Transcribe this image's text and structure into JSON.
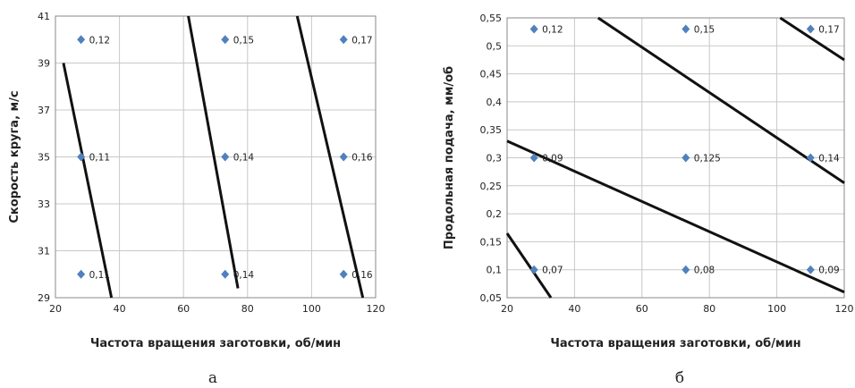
{
  "chart_data": [
    {
      "type": "scatter",
      "caption": "а",
      "xlabel": "Частота вращения заготовки, об/мин",
      "ylabel": "Скорость круга, м/с",
      "xlim": [
        20,
        120
      ],
      "ylim": [
        29,
        41
      ],
      "xticks": [
        20,
        40,
        60,
        80,
        100,
        120
      ],
      "yticks": [
        29,
        31,
        33,
        35,
        37,
        39,
        41
      ],
      "ytick_labels": [
        "29",
        "31",
        "33",
        "35",
        "37",
        "39",
        "41"
      ],
      "grid": true,
      "marker_color": "#4f81bd",
      "line_color": "#111111",
      "points": [
        {
          "x": 28,
          "y": 40,
          "label": "0,12"
        },
        {
          "x": 73,
          "y": 40,
          "label": "0,15"
        },
        {
          "x": 110,
          "y": 40,
          "label": "0,17"
        },
        {
          "x": 28,
          "y": 35,
          "label": "0,11"
        },
        {
          "x": 73,
          "y": 35,
          "label": "0,14"
        },
        {
          "x": 110,
          "y": 35,
          "label": "0,16"
        },
        {
          "x": 28,
          "y": 30,
          "label": "0,11"
        },
        {
          "x": 73,
          "y": 30,
          "label": "0,14"
        },
        {
          "x": 110,
          "y": 30,
          "label": "0,16"
        }
      ],
      "lines": [
        {
          "x1": 22.5,
          "y1": 39,
          "x2": 37.5,
          "y2": 29
        },
        {
          "x1": 61.5,
          "y1": 41,
          "x2": 77,
          "y2": 29.4
        },
        {
          "x1": 95.5,
          "y1": 41,
          "x2": 116,
          "y2": 29
        }
      ]
    },
    {
      "type": "scatter",
      "caption": "б",
      "xlabel": "Частота вращения заготовки, об/мин",
      "ylabel": "Продольная подача, мм/об",
      "xlim": [
        20,
        120
      ],
      "ylim": [
        0.05,
        0.55
      ],
      "xticks": [
        20,
        40,
        60,
        80,
        100,
        120
      ],
      "yticks": [
        0.05,
        0.1,
        0.15,
        0.2,
        0.25,
        0.3,
        0.35,
        0.4,
        0.45,
        0.5,
        0.55
      ],
      "ytick_labels": [
        "0,05",
        "0,1",
        "0,15",
        "0,2",
        "0,25",
        "0,3",
        "0,35",
        "0,4",
        "0,45",
        "0,5",
        "0,55"
      ],
      "grid": true,
      "marker_color": "#4f81bd",
      "line_color": "#111111",
      "points": [
        {
          "x": 28,
          "y": 0.53,
          "label": "0,12"
        },
        {
          "x": 73,
          "y": 0.53,
          "label": "0,15"
        },
        {
          "x": 110,
          "y": 0.53,
          "label": "0,17"
        },
        {
          "x": 28,
          "y": 0.3,
          "label": "0,09"
        },
        {
          "x": 73,
          "y": 0.3,
          "label": "0,125"
        },
        {
          "x": 110,
          "y": 0.3,
          "label": "0,14"
        },
        {
          "x": 28,
          "y": 0.1,
          "label": "0,07"
        },
        {
          "x": 73,
          "y": 0.1,
          "label": "0,08"
        },
        {
          "x": 110,
          "y": 0.1,
          "label": "0,09"
        }
      ],
      "lines": [
        {
          "x1": 47,
          "y1": 0.55,
          "x2": 120,
          "y2": 0.255
        },
        {
          "x1": 101,
          "y1": 0.55,
          "x2": 120,
          "y2": 0.475
        },
        {
          "x1": 20,
          "y1": 0.33,
          "x2": 120,
          "y2": 0.06
        },
        {
          "x1": 20,
          "y1": 0.165,
          "x2": 33,
          "y2": 0.05
        }
      ]
    }
  ]
}
